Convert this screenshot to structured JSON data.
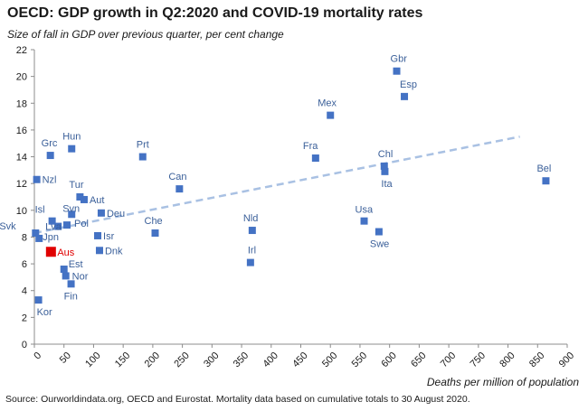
{
  "chart_data": {
    "type": "scatter",
    "title": "OECD: GDP growth in Q2:2020 and COVID-19 mortality rates",
    "subtitle": "Size of fall in GDP over previous quarter, per cent change",
    "xlabel": "Deaths per million of population",
    "source": "Source: Ourworldindata.org, OECD and Eurostat.  Mortality data based on cumulative totals to 30 August 2020.",
    "xlim": [
      0,
      900
    ],
    "ylim": [
      0,
      22
    ],
    "x_ticks": [
      "0",
      "50",
      "100",
      "150",
      "200",
      "250",
      "300",
      "350",
      "400",
      "450",
      "500",
      "550",
      "600",
      "650",
      "700",
      "750",
      "800",
      "850",
      "900"
    ],
    "y_ticks": [
      "0",
      "2",
      "4",
      "6",
      "8",
      "10",
      "12",
      "14",
      "16",
      "18",
      "20",
      "22"
    ],
    "grid": false,
    "series_color": "#4472C4",
    "highlight_color": "#E00000",
    "trend_color": "#A9C1E3",
    "trend_line": {
      "x": [
        0,
        820
      ],
      "y": [
        8.3,
        15.5
      ]
    },
    "points": [
      {
        "label": "Gbr",
        "x": 612,
        "y": 20.4
      },
      {
        "label": "Esp",
        "x": 625,
        "y": 18.5
      },
      {
        "label": "Mex",
        "x": 500,
        "y": 17.1
      },
      {
        "label": "Hun",
        "x": 63,
        "y": 14.6
      },
      {
        "label": "Grc",
        "x": 27,
        "y": 14.1
      },
      {
        "label": "Prt",
        "x": 183,
        "y": 14.0
      },
      {
        "label": "Fra",
        "x": 475,
        "y": 13.9
      },
      {
        "label": "Chl",
        "x": 591,
        "y": 13.3
      },
      {
        "label": "Ita",
        "x": 592,
        "y": 12.9
      },
      {
        "label": "Nzl",
        "x": 4,
        "y": 12.3
      },
      {
        "label": "Bel",
        "x": 864,
        "y": 12.2
      },
      {
        "label": "Can",
        "x": 245,
        "y": 11.6
      },
      {
        "label": "Tur",
        "x": 77,
        "y": 11.0
      },
      {
        "label": "Aut",
        "x": 84,
        "y": 10.8
      },
      {
        "label": "Deu",
        "x": 113,
        "y": 9.8
      },
      {
        "label": "Svn",
        "x": 63,
        "y": 9.7
      },
      {
        "label": "Usa",
        "x": 557,
        "y": 9.2
      },
      {
        "label": "Isl",
        "x": 30,
        "y": 9.2
      },
      {
        "label": "Pol",
        "x": 55,
        "y": 8.9
      },
      {
        "label": "Lva",
        "x": 40,
        "y": 8.8
      },
      {
        "label": "Nld",
        "x": 368,
        "y": 8.5
      },
      {
        "label": "Swe",
        "x": 582,
        "y": 8.4
      },
      {
        "label": "Che",
        "x": 204,
        "y": 8.3
      },
      {
        "label": "Isr",
        "x": 107,
        "y": 8.1
      },
      {
        "label": "Svk",
        "x": 2,
        "y": 8.3
      },
      {
        "label": "Jpn",
        "x": 8,
        "y": 7.9
      },
      {
        "label": "Aus",
        "x": 28,
        "y": 6.9,
        "highlight": true
      },
      {
        "label": "Dnk",
        "x": 110,
        "y": 7.0
      },
      {
        "label": "Irl",
        "x": 365,
        "y": 6.1
      },
      {
        "label": "Est",
        "x": 50,
        "y": 5.6
      },
      {
        "label": "Nor",
        "x": 53,
        "y": 5.1
      },
      {
        "label": "Fin",
        "x": 62,
        "y": 4.5
      },
      {
        "label": "Kor",
        "x": 7,
        "y": 3.3
      }
    ]
  }
}
